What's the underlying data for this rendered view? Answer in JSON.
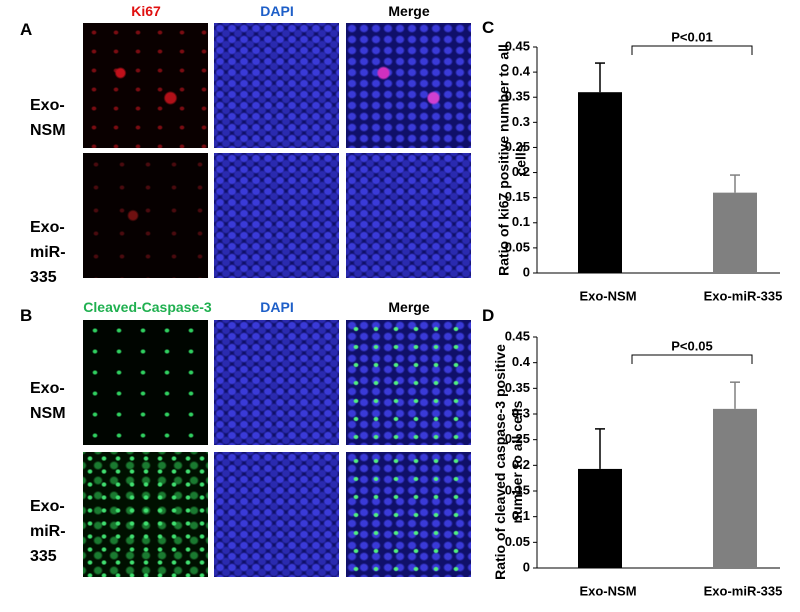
{
  "panel_a": {
    "label": "A",
    "columns": [
      "Ki67",
      "DAPI",
      "Merge"
    ],
    "rows": [
      "Exo-NSM",
      "Exo-miR-335"
    ]
  },
  "panel_b": {
    "label": "B",
    "columns": [
      "Cleaved-Caspase-3",
      "DAPI",
      "Merge"
    ],
    "rows": [
      "Exo-NSM",
      "Exo-miR-335"
    ]
  },
  "chart_data": [
    {
      "type": "bar",
      "panel_label": "C",
      "ylabel": "Ratio of ki67 positive number to all cells",
      "annotation": "P<0.01",
      "categories": [
        "Exo-NSM",
        "Exo-miR-335"
      ],
      "values": [
        0.36,
        0.16
      ],
      "errors": [
        0.058,
        0.035
      ],
      "colors": [
        "#000000",
        "#808080"
      ],
      "ylim": [
        0,
        0.45
      ],
      "yticks": [
        0,
        0.05,
        0.1,
        0.15,
        0.2,
        0.25,
        0.3,
        0.35,
        0.4,
        0.45
      ]
    },
    {
      "type": "bar",
      "panel_label": "D",
      "ylabel": "Ratio of  cleaved caspase-3 positive number to all cells",
      "annotation": "P<0.05",
      "categories": [
        "Exo-NSM",
        "Exo-miR-335"
      ],
      "values": [
        0.193,
        0.31
      ],
      "errors": [
        0.078,
        0.052
      ],
      "colors": [
        "#000000",
        "#808080"
      ],
      "ylim": [
        0,
        0.45
      ],
      "yticks": [
        0,
        0.05,
        0.1,
        0.15,
        0.2,
        0.25,
        0.3,
        0.35,
        0.4,
        0.45
      ]
    }
  ]
}
